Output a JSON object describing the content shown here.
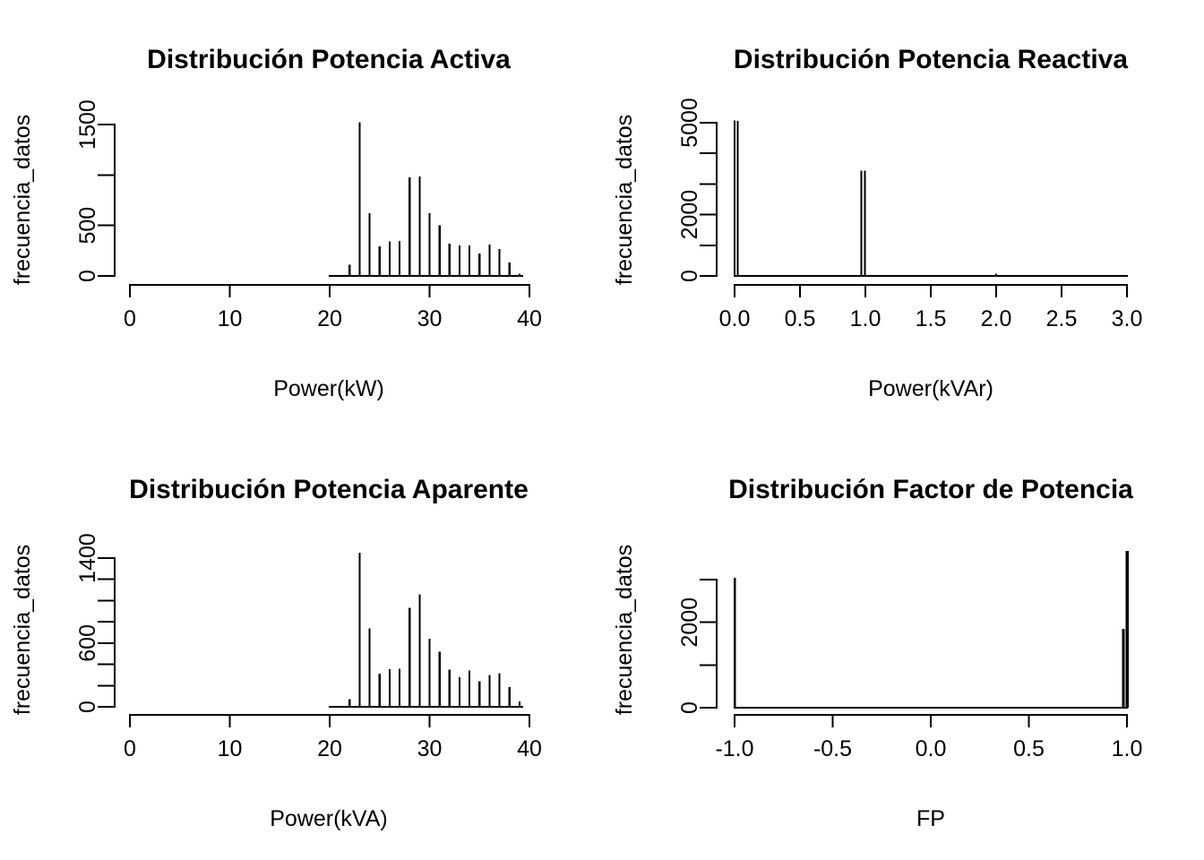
{
  "colors": {
    "ink": "#000000",
    "background": "#ffffff"
  },
  "chart_data": [
    {
      "id": "potencia-activa",
      "position": "top-left",
      "type": "bar",
      "title": "Distribución Potencia Activa",
      "xlabel": "Power(kW)",
      "ylabel": "frecuencia_datos",
      "xlim": [
        0,
        40
      ],
      "ylim": [
        0,
        1500
      ],
      "grid": false,
      "legend": null,
      "x_ticks": {
        "values": [
          0,
          10,
          20,
          30,
          40
        ],
        "labels": [
          "0",
          "10",
          "20",
          "30",
          "40"
        ]
      },
      "y_ticks": {
        "values": [
          0,
          500,
          1000,
          1500
        ],
        "labels": [
          "0",
          "500",
          "",
          "1500"
        ]
      },
      "baseline_extent": [
        20,
        39.3
      ],
      "x": [
        22,
        23,
        24,
        25,
        26,
        27,
        28,
        29,
        30,
        31,
        32,
        33,
        34,
        35,
        36,
        37,
        38,
        39
      ],
      "values": [
        110,
        1520,
        620,
        295,
        340,
        345,
        975,
        985,
        620,
        500,
        320,
        300,
        300,
        220,
        310,
        265,
        135,
        20
      ]
    },
    {
      "id": "potencia-reactiva",
      "position": "top-right",
      "type": "bar",
      "title": "Distribución Potencia Reactiva",
      "xlabel": "Power(kVAr)",
      "ylabel": "frecuencia_datos",
      "xlim": [
        0,
        3
      ],
      "ylim": [
        0,
        5000
      ],
      "grid": false,
      "legend": null,
      "x_ticks": {
        "values": [
          0,
          0.5,
          1,
          1.5,
          2,
          2.5,
          3
        ],
        "labels": [
          "0.0",
          "0.5",
          "1.0",
          "1.5",
          "2.0",
          "2.5",
          "3.0"
        ]
      },
      "y_ticks": {
        "values": [
          0,
          1000,
          2000,
          3000,
          4000,
          5000
        ],
        "labels": [
          "0",
          "",
          "2000",
          "",
          "",
          "5000"
        ]
      },
      "baseline_extent": [
        0,
        3
      ],
      "x": [
        0,
        0.025,
        0.97,
        0.995,
        2
      ],
      "values": [
        5080,
        5060,
        3430,
        3440,
        80
      ],
      "line_widths": [
        2,
        2,
        2,
        2,
        2
      ]
    },
    {
      "id": "potencia-aparente",
      "position": "bottom-left",
      "type": "bar",
      "title": "Distribución Potencia Aparente",
      "xlabel": "Power(kVA)",
      "ylabel": "frecuencia_datos",
      "xlim": [
        0,
        40
      ],
      "ylim": [
        0,
        1400
      ],
      "grid": false,
      "legend": null,
      "x_ticks": {
        "values": [
          0,
          10,
          20,
          30,
          40
        ],
        "labels": [
          "0",
          "10",
          "20",
          "30",
          "40"
        ]
      },
      "y_ticks": {
        "values": [
          0,
          200,
          400,
          600,
          800,
          1000,
          1200,
          1400
        ],
        "labels": [
          "0",
          "",
          "",
          "600",
          "",
          "",
          "",
          "1400"
        ]
      },
      "baseline_extent": [
        20,
        39.3
      ],
      "x": [
        22,
        23,
        24,
        25,
        26,
        27,
        28,
        29,
        30,
        31,
        32,
        33,
        34,
        35,
        36,
        37,
        38,
        39
      ],
      "values": [
        70,
        1450,
        740,
        310,
        355,
        360,
        930,
        1060,
        640,
        520,
        350,
        280,
        340,
        240,
        300,
        315,
        185,
        50
      ]
    },
    {
      "id": "factor-de-potencia",
      "position": "bottom-right",
      "type": "bar",
      "title": "Distribución Factor de Potencia",
      "xlabel": "FP",
      "ylabel": "frecuencia_datos",
      "xlim": [
        -1,
        1
      ],
      "ylim": [
        0,
        3000
      ],
      "grid": false,
      "legend": null,
      "x_ticks": {
        "values": [
          -1,
          -0.5,
          0,
          0.5,
          1
        ],
        "labels": [
          "-1.0",
          "-0.5",
          "0.0",
          "0.5",
          "1.0"
        ]
      },
      "y_ticks": {
        "values": [
          0,
          1000,
          2000,
          3000
        ],
        "labels": [
          "0",
          "",
          "2000",
          ""
        ]
      },
      "baseline_extent": [
        -1,
        1
      ],
      "x": [
        -1,
        0.982,
        1
      ],
      "values": [
        3040,
        1850,
        3670
      ],
      "line_widths": [
        2.5,
        3,
        3.5
      ]
    }
  ]
}
